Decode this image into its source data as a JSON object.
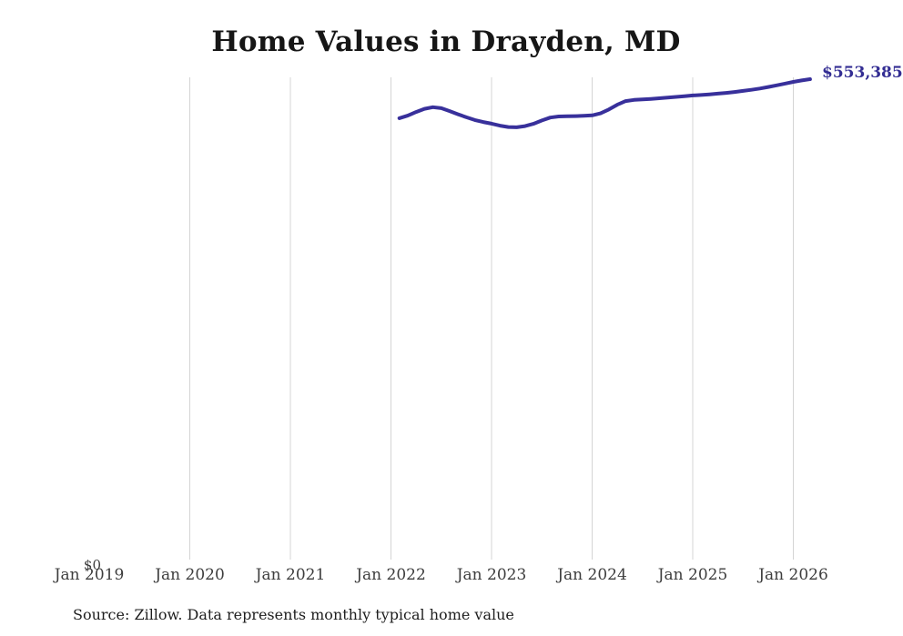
{
  "chart_data": {
    "type": "line",
    "title": "Home Values in Drayden, MD",
    "xlabel": "",
    "ylabel": "",
    "ylabel_zero": "$0",
    "end_label": "$553,385",
    "source_note": "Source: Zillow. Data represents monthly typical home value",
    "x_ticks": [
      "Jan 2019",
      "Jan 2020",
      "Jan 2021",
      "Jan 2022",
      "Jan 2023",
      "Jan 2024",
      "Jan 2025",
      "Jan 2026"
    ],
    "x": [
      "Feb 2022",
      "Mar 2022",
      "Apr 2022",
      "May 2022",
      "Jun 2022",
      "Jul 2022",
      "Aug 2022",
      "Sep 2022",
      "Oct 2022",
      "Nov 2022",
      "Dec 2022",
      "Jan 2023",
      "Feb 2023",
      "Mar 2023",
      "Apr 2023",
      "May 2023",
      "Jun 2023",
      "Jul 2023",
      "Aug 2023",
      "Sep 2023",
      "Oct 2023",
      "Nov 2023",
      "Dec 2023",
      "Jan 2024",
      "Feb 2024",
      "Mar 2024",
      "Apr 2024",
      "May 2024",
      "Jun 2024",
      "Jul 2024",
      "Aug 2024",
      "Sep 2024",
      "Oct 2024",
      "Nov 2024",
      "Dec 2024",
      "Jan 2025",
      "Feb 2025",
      "Mar 2025",
      "Apr 2025",
      "May 2025",
      "Jun 2025",
      "Jul 2025",
      "Aug 2025",
      "Sep 2025",
      "Oct 2025",
      "Nov 2025",
      "Dec 2025",
      "Jan 2026",
      "Feb 2026",
      "Mar 2026"
    ],
    "values": [
      508700,
      511600,
      515800,
      519400,
      521300,
      520100,
      516800,
      513200,
      509700,
      506600,
      504300,
      502400,
      500100,
      498600,
      498300,
      499600,
      502200,
      506100,
      509400,
      510700,
      510900,
      511100,
      511400,
      511900,
      514200,
      518700,
      524100,
      528300,
      529600,
      530200,
      530800,
      531500,
      532300,
      533100,
      533900,
      534700,
      535300,
      536000,
      536800,
      537700,
      538700,
      539900,
      541200,
      542700,
      544400,
      546300,
      548300,
      550300,
      551900,
      553385
    ],
    "ylim": [
      0,
      553385
    ],
    "grid": "vertical-yearly",
    "legend": "none",
    "colors": {
      "line": "#38309b",
      "end_label": "#332d93",
      "gridline": "#d4d4d4",
      "tick_label": "#3d3d3d",
      "title": "#161616",
      "source": "#1e1e1e"
    }
  }
}
